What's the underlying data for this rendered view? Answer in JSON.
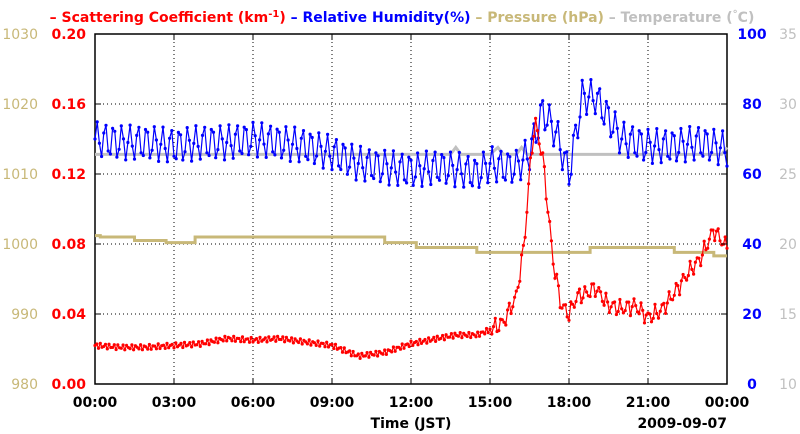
{
  "chart_data": {
    "type": "line",
    "legend": {
      "items": [
        {
          "prefix": "– ",
          "label": "Scattering Coefficient (km",
          "sup": "-1",
          "suffix": ")",
          "color": "#ff0000"
        },
        {
          "prefix": "– ",
          "label": "Relative Humidity(%)",
          "sup": "",
          "suffix": "",
          "color": "#0000ff"
        },
        {
          "prefix": "– ",
          "label": "Pressure (hPa)",
          "sup": "",
          "suffix": "",
          "color": "#c8b878"
        },
        {
          "prefix": "– ",
          "label": "Temperature (",
          "sup": "°",
          "suffix": "C)",
          "color": "#c0c0c0"
        }
      ]
    },
    "xlabel": "Time (JST)",
    "date_label": "2009-09-07",
    "xlim": [
      0,
      24
    ],
    "x_ticks": [
      0,
      3,
      6,
      9,
      12,
      15,
      18,
      21,
      24
    ],
    "x_tick_labels": [
      "00:00",
      "03:00",
      "06:00",
      "09:00",
      "12:00",
      "15:00",
      "18:00",
      "21:00",
      "00:00"
    ],
    "axes": {
      "pressure": {
        "ylim": [
          980,
          1030
        ],
        "ticks": [
          "980",
          "990",
          "1000",
          "1010",
          "1020",
          "1030"
        ],
        "color": "#c8b878"
      },
      "scattering": {
        "ylim": [
          0,
          0.2
        ],
        "ticks": [
          "0.00",
          "0.04",
          "0.08",
          "0.12",
          "0.16",
          "0.20"
        ],
        "color": "#ff0000"
      },
      "humidity": {
        "ylim": [
          0,
          100
        ],
        "ticks": [
          "0",
          "20",
          "40",
          "60",
          "80",
          "100"
        ],
        "color": "#0000ff"
      },
      "temperature": {
        "ylim": [
          10,
          35
        ],
        "ticks": [
          "10",
          "15",
          "20",
          "25",
          "30",
          "35"
        ],
        "color": "#c0c0c0"
      }
    },
    "grid": true,
    "series": [
      {
        "name": "Scattering Coefficient",
        "axis": "scattering",
        "color": "#ff0000",
        "marker": true,
        "points": [
          [
            0,
            0.022
          ],
          [
            1,
            0.021
          ],
          [
            2,
            0.021
          ],
          [
            3,
            0.022
          ],
          [
            4,
            0.023
          ],
          [
            5,
            0.026
          ],
          [
            6,
            0.025
          ],
          [
            7,
            0.026
          ],
          [
            8,
            0.024
          ],
          [
            9,
            0.022
          ],
          [
            10,
            0.016
          ],
          [
            11,
            0.018
          ],
          [
            12,
            0.023
          ],
          [
            13,
            0.026
          ],
          [
            13.7,
            0.028
          ],
          [
            14.5,
            0.028
          ],
          [
            15,
            0.031
          ],
          [
            15.5,
            0.035
          ],
          [
            16,
            0.05
          ],
          [
            16.3,
            0.08
          ],
          [
            16.5,
            0.12
          ],
          [
            16.7,
            0.15
          ],
          [
            17,
            0.13
          ],
          [
            17.2,
            0.1
          ],
          [
            17.4,
            0.07
          ],
          [
            17.7,
            0.045
          ],
          [
            18,
            0.04
          ],
          [
            18.3,
            0.05
          ],
          [
            18.7,
            0.052
          ],
          [
            19,
            0.055
          ],
          [
            19.5,
            0.045
          ],
          [
            20,
            0.043
          ],
          [
            20.5,
            0.045
          ],
          [
            21,
            0.038
          ],
          [
            21.5,
            0.042
          ],
          [
            22,
            0.052
          ],
          [
            22.5,
            0.063
          ],
          [
            23,
            0.072
          ],
          [
            23.5,
            0.088
          ],
          [
            24,
            0.078
          ]
        ]
      },
      {
        "name": "Relative Humidity",
        "axis": "humidity",
        "color": "#0000ff",
        "marker": true,
        "oscillation": 5,
        "points": [
          [
            0,
            70
          ],
          [
            1,
            69
          ],
          [
            2,
            69
          ],
          [
            3,
            68
          ],
          [
            4,
            69
          ],
          [
            5,
            69
          ],
          [
            6,
            70
          ],
          [
            7,
            69
          ],
          [
            8,
            68
          ],
          [
            9,
            66
          ],
          [
            10,
            63
          ],
          [
            11,
            62
          ],
          [
            12,
            61
          ],
          [
            13,
            62
          ],
          [
            14,
            61
          ],
          [
            14.5,
            60
          ],
          [
            15,
            63
          ],
          [
            15.5,
            62
          ],
          [
            16,
            62
          ],
          [
            16.5,
            66
          ],
          [
            17,
            78
          ],
          [
            17.5,
            72
          ],
          [
            18,
            60
          ],
          [
            18.5,
            82
          ],
          [
            19,
            82
          ],
          [
            19.5,
            76
          ],
          [
            20,
            70
          ],
          [
            21,
            68
          ],
          [
            22,
            68
          ],
          [
            23,
            69
          ],
          [
            24,
            67
          ]
        ]
      },
      {
        "name": "Pressure",
        "axis": "pressure",
        "color": "#c8b878",
        "marker": false,
        "points": [
          [
            0,
            1001.2
          ],
          [
            0.2,
            1001.2
          ],
          [
            0.2,
            1001
          ],
          [
            1.5,
            1001
          ],
          [
            1.5,
            1000.5
          ],
          [
            2.7,
            1000.5
          ],
          [
            2.7,
            1000.2
          ],
          [
            3.8,
            1000.2
          ],
          [
            3.8,
            1001
          ],
          [
            11,
            1001
          ],
          [
            11,
            1000.2
          ],
          [
            12.2,
            1000.2
          ],
          [
            12.2,
            999.5
          ],
          [
            14.5,
            999.5
          ],
          [
            14.5,
            998.8
          ],
          [
            18.8,
            998.8
          ],
          [
            18.8,
            999.5
          ],
          [
            22,
            999.5
          ],
          [
            22,
            998.8
          ],
          [
            23.5,
            998.8
          ],
          [
            23.5,
            998.3
          ],
          [
            24,
            998.3
          ]
        ]
      },
      {
        "name": "Temperature",
        "axis": "temperature",
        "color": "#c0c0c0",
        "marker": false,
        "points": [
          [
            0,
            26.4
          ],
          [
            13.5,
            26.4
          ],
          [
            13.7,
            26.9
          ],
          [
            13.9,
            26.4
          ],
          [
            15,
            26.4
          ],
          [
            15.3,
            26.9
          ],
          [
            15.5,
            26.4
          ],
          [
            16,
            26.4
          ],
          [
            16.2,
            26.9
          ],
          [
            16.4,
            26.4
          ],
          [
            23.8,
            26.4
          ],
          [
            24,
            26.9
          ]
        ]
      }
    ]
  }
}
